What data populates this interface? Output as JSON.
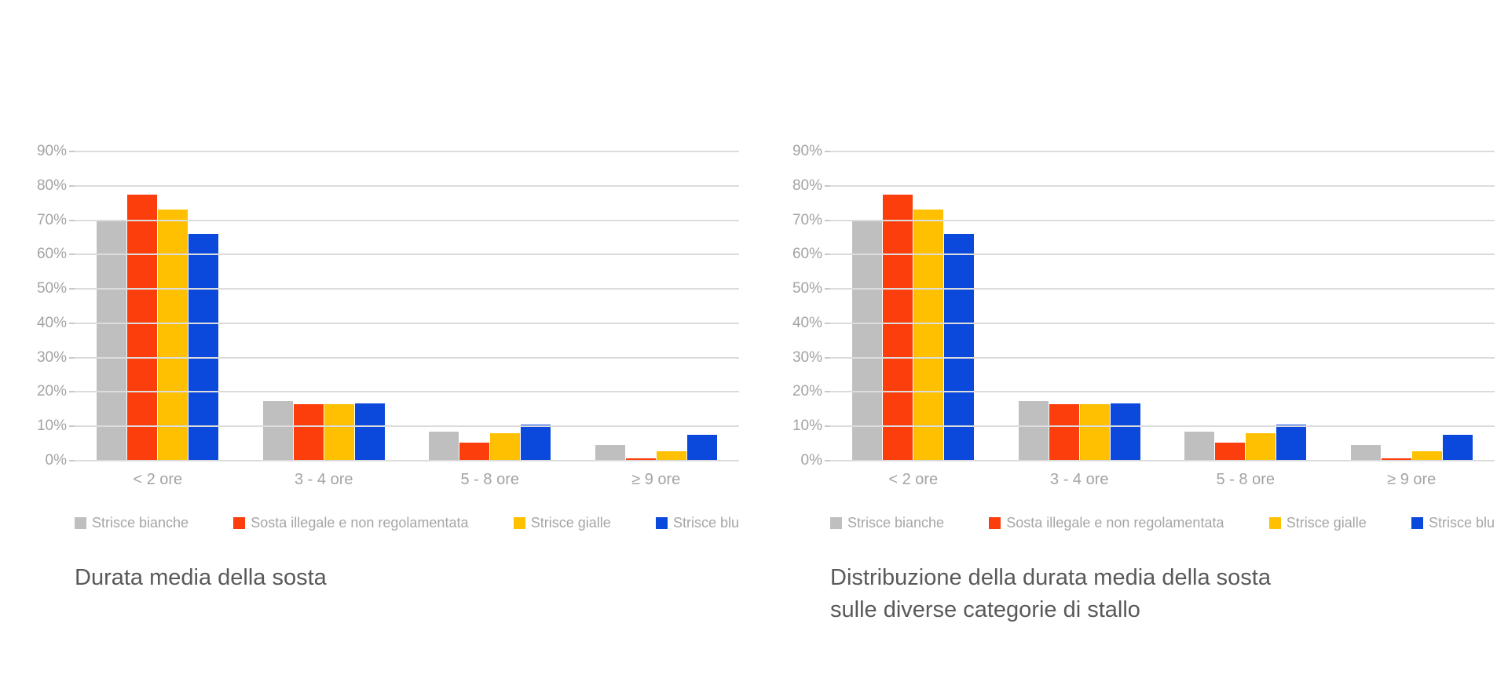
{
  "page": {
    "background": "#ffffff"
  },
  "palette": {
    "gray": "#bfbfbf",
    "red": "#fb3e0c",
    "yellow": "#ffc002",
    "blue": "#0a49dc",
    "gridline": "#dcdcdc",
    "axis_text": "#a3a3a3",
    "legend_text": "#a6a6a6",
    "caption_text": "#595959"
  },
  "chart_data": [
    {
      "type": "bar",
      "title": "",
      "xlabel": "",
      "ylabel": "",
      "ylim": [
        0,
        90
      ],
      "yticks": [
        "0%",
        "10%",
        "20%",
        "30%",
        "40%",
        "50%",
        "60%",
        "70%",
        "80%",
        "90%"
      ],
      "grid": true,
      "legend_position": "bottom",
      "categories": [
        "< 2 ore",
        "3 - 4 ore",
        "5 - 8 ore",
        "≥ 9 ore"
      ],
      "series": [
        {
          "name": "Strisce bianche",
          "color": "#bfbfbf",
          "values": [
            70,
            17.4,
            8.4,
            4.5
          ]
        },
        {
          "name": "Sosta illegale e non regolamentata",
          "color": "#fb3e0c",
          "values": [
            77.5,
            16.5,
            5.3,
            0.7
          ]
        },
        {
          "name": "Strisce gialle",
          "color": "#ffc002",
          "values": [
            73,
            16.4,
            8.0,
            2.8
          ]
        },
        {
          "name": "Strisce blu",
          "color": "#0a49dc",
          "values": [
            66,
            16.6,
            10.4,
            7.5
          ]
        }
      ],
      "caption_lines": [
        "Durata media della sosta"
      ]
    },
    {
      "type": "bar",
      "title": "",
      "xlabel": "",
      "ylabel": "",
      "ylim": [
        0,
        90
      ],
      "yticks": [
        "0%",
        "10%",
        "20%",
        "30%",
        "40%",
        "50%",
        "60%",
        "70%",
        "80%",
        "90%"
      ],
      "grid": true,
      "legend_position": "bottom",
      "categories": [
        "< 2 ore",
        "3 - 4 ore",
        "5 - 8 ore",
        "≥ 9 ore"
      ],
      "series": [
        {
          "name": "Strisce bianche",
          "color": "#bfbfbf",
          "values": [
            70,
            17.4,
            8.4,
            4.5
          ]
        },
        {
          "name": "Sosta illegale e non regolamentata",
          "color": "#fb3e0c",
          "values": [
            77.5,
            16.5,
            5.3,
            0.7
          ]
        },
        {
          "name": "Strisce gialle",
          "color": "#ffc002",
          "values": [
            73,
            16.4,
            8.0,
            2.8
          ]
        },
        {
          "name": "Strisce blu",
          "color": "#0a49dc",
          "values": [
            66,
            16.6,
            10.4,
            7.5
          ]
        }
      ],
      "caption_lines": [
        "Distribuzione della durata media della sosta",
        "sulle diverse categorie di stallo"
      ]
    }
  ]
}
